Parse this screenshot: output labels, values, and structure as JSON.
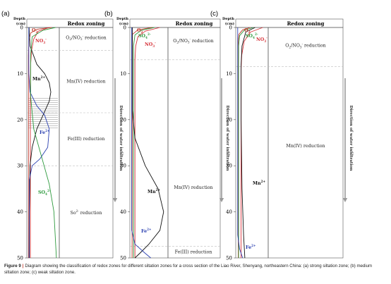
{
  "panels": [
    {
      "letter": "(a)",
      "header_title": "Redox zoning",
      "axis_label_top": "Depth",
      "axis_label_unit": "(cm)",
      "ticks": [
        "0",
        "10",
        "20",
        "30",
        "40",
        "50"
      ],
      "curve_labels": [
        {
          "base": "O",
          "sub": "2",
          "sup": ""
        },
        {
          "base": "NO",
          "sub": "3",
          "sup": "-"
        },
        {
          "base": "Mn",
          "sub": "",
          "sup": "2+"
        },
        {
          "base": "Fe",
          "sub": "",
          "sup": "2+"
        },
        {
          "base": "SO",
          "sub": "4",
          "sup": "2-"
        }
      ],
      "zones": [
        {
          "text": "O",
          "sub1": "2",
          "mid": "/NO",
          "sub2": "3",
          "sup2": "-",
          "tail": " reduction"
        },
        {
          "text": "Mn(IV) reduction"
        },
        {
          "text": "Fe(III) reduction"
        },
        {
          "text": "So",
          "sup": "2-",
          "tail": " reduction"
        }
      ],
      "arrow_text": "Direction of water infiltration"
    },
    {
      "letter": "(b)",
      "header_title": "Redox zoning",
      "axis_label_top": "Depth",
      "axis_label_unit": "(cm)",
      "ticks": [
        "0",
        "10",
        "20",
        "30",
        "40",
        "50"
      ],
      "curve_labels": [
        {
          "base": "O",
          "sub": "2",
          "sup": ""
        },
        {
          "base": "SO",
          "sub": "4",
          "sup": "2-"
        },
        {
          "base": "NO",
          "sub": "3",
          "sup": "-"
        },
        {
          "base": "Mn",
          "sub": "",
          "sup": "2+"
        },
        {
          "base": "Fe",
          "sub": "",
          "sup": "2+"
        }
      ],
      "zones": [
        {
          "text": "O",
          "sub1": "2",
          "mid": "/NO",
          "sub2": "3",
          "sup2": "-",
          "tail": " reduction"
        },
        {
          "text": "Mn(IV) reduction"
        },
        {
          "text": "Fe(III) reduction"
        }
      ],
      "arrow_text": "Direction of water infiltration"
    },
    {
      "letter": "(c)",
      "header_title": "Redox zoning",
      "axis_label_top": "Depth",
      "axis_label_unit": "(cm)",
      "ticks": [
        "0",
        "10",
        "20",
        "30",
        "40",
        "50"
      ],
      "curve_labels": [
        {
          "base": "O",
          "sub": "2",
          "sup": ""
        },
        {
          "base": "SO",
          "sub": "4",
          "sup": "2-"
        },
        {
          "base": "NO",
          "sub": "3",
          "sup": "-"
        },
        {
          "base": "Mn",
          "sub": "",
          "sup": "2+"
        },
        {
          "base": "Fe",
          "sub": "",
          "sup": "2+"
        }
      ],
      "zones": [
        {
          "text": "O",
          "sub1": "2",
          "mid": "/NO",
          "sub2": "3",
          "sup2": "-",
          "tail": " reduction"
        },
        {
          "text": "Mn(IV) reduction"
        }
      ],
      "arrow_text": "Direction of water infiltration"
    }
  ],
  "caption": {
    "label": "Figure 9",
    "separator": "|",
    "text": "Diagram showing the classification of redox zones for different siltation zones for a cross section of the Liao River, Shenyang, northeastern China: (a) strong siltation zone; (b) medium siltation zone; (c) weak siltation zone."
  },
  "colors": {
    "o2": "#c0392b",
    "no3": "#d6333a",
    "mn": "#111111",
    "fe": "#2a3fb0",
    "so4": "#2e9a3e",
    "arrow": "#9a9a9a",
    "frame": "#555555"
  },
  "chart_data": [
    {
      "type": "line",
      "title": "",
      "ylabel": "Depth (cm)",
      "xlabel": "",
      "ylim": [
        0,
        50
      ],
      "y_inverted": true,
      "zone_boundaries": [
        5,
        18.5,
        30,
        50
      ],
      "series": [
        {
          "name": "O2",
          "color": "#c0392b",
          "points": [
            [
              0.78,
              0
            ],
            [
              0.3,
              0.4
            ],
            [
              0.1,
              1.2
            ],
            [
              0.04,
              3
            ],
            [
              0.03,
              6
            ],
            [
              0.03,
              50
            ]
          ]
        },
        {
          "name": "NO3-",
          "color": "#d6333a",
          "points": [
            [
              0.7,
              0
            ],
            [
              0.35,
              0.8
            ],
            [
              0.2,
              2.5
            ],
            [
              0.13,
              5
            ],
            [
              0.1,
              8
            ],
            [
              0.09,
              12
            ],
            [
              0.09,
              50
            ]
          ]
        },
        {
          "name": "Mn2+",
          "color": "#111111",
          "points": [
            [
              0.05,
              0
            ],
            [
              0.08,
              4
            ],
            [
              0.3,
              8
            ],
            [
              0.55,
              10
            ],
            [
              0.7,
              12
            ],
            [
              0.75,
              14
            ],
            [
              0.7,
              16
            ],
            [
              0.5,
              19
            ],
            [
              0.3,
              22
            ],
            [
              0.15,
              26
            ],
            [
              0.08,
              30
            ],
            [
              0.06,
              40
            ],
            [
              0.06,
              50
            ]
          ]
        },
        {
          "name": "Fe2+",
          "color": "#2a3fb0",
          "points": [
            [
              0.04,
              0
            ],
            [
              0.04,
              10
            ],
            [
              0.08,
              14
            ],
            [
              0.3,
              17
            ],
            [
              0.55,
              19
            ],
            [
              0.7,
              22
            ],
            [
              0.65,
              26
            ],
            [
              0.4,
              28.5
            ],
            [
              0.15,
              30
            ],
            [
              0.06,
              33
            ],
            [
              0.05,
              50
            ]
          ]
        },
        {
          "name": "SO42-",
          "color": "#2e9a3e",
          "points": [
            [
              0.9,
              0
            ],
            [
              0.5,
              0.6
            ],
            [
              0.15,
              2
            ],
            [
              0.1,
              6
            ],
            [
              0.1,
              15
            ],
            [
              0.2,
              22
            ],
            [
              0.45,
              28
            ],
            [
              0.7,
              34
            ],
            [
              0.85,
              40
            ],
            [
              0.93,
              50
            ]
          ]
        }
      ]
    },
    {
      "type": "line",
      "title": "",
      "ylabel": "Depth (cm)",
      "xlabel": "",
      "ylim": [
        0,
        50
      ],
      "y_inverted": true,
      "zone_boundaries": [
        7,
        47.5,
        50
      ],
      "series": [
        {
          "name": "O2",
          "color": "#c0392b",
          "points": [
            [
              0.6,
              0
            ],
            [
              0.2,
              0.5
            ],
            [
              0.05,
              1.5
            ],
            [
              0.04,
              50
            ]
          ]
        },
        {
          "name": "NO3-",
          "color": "#d6333a",
          "points": [
            [
              0.8,
              0
            ],
            [
              0.4,
              0.8
            ],
            [
              0.2,
              2
            ],
            [
              0.14,
              4
            ],
            [
              0.12,
              7
            ],
            [
              0.12,
              50
            ]
          ]
        },
        {
          "name": "SO42-",
          "color": "#2e9a3e",
          "points": [
            [
              0.65,
              0
            ],
            [
              0.3,
              0.6
            ],
            [
              0.12,
              1.6
            ],
            [
              0.08,
              4
            ],
            [
              0.08,
              50
            ]
          ]
        },
        {
          "name": "Mn2+",
          "color": "#111111",
          "points": [
            [
              0.05,
              0
            ],
            [
              0.05,
              18
            ],
            [
              0.12,
              24
            ],
            [
              0.4,
              30
            ],
            [
              0.75,
              35
            ],
            [
              0.9,
              40
            ],
            [
              0.8,
              44
            ],
            [
              0.5,
              47
            ],
            [
              0.25,
              49
            ],
            [
              0.12,
              50
            ]
          ]
        },
        {
          "name": "Fe2+",
          "color": "#2a3fb0",
          "points": [
            [
              0.03,
              0
            ],
            [
              0.03,
              44
            ],
            [
              0.12,
              47
            ],
            [
              0.4,
              49
            ],
            [
              0.55,
              50
            ]
          ]
        }
      ]
    },
    {
      "type": "line",
      "title": "",
      "ylabel": "Depth (cm)",
      "xlabel": "",
      "ylim": [
        0,
        50
      ],
      "y_inverted": true,
      "zone_boundaries": [
        8.5,
        50
      ],
      "series": [
        {
          "name": "O2",
          "color": "#c0392b",
          "points": [
            [
              0.45,
              0
            ],
            [
              0.2,
              0.5
            ],
            [
              0.08,
              1.5
            ],
            [
              0.06,
              3
            ],
            [
              0.06,
              50
            ]
          ]
        },
        {
          "name": "SO42-",
          "color": "#2e9a3e",
          "points": [
            [
              0.55,
              0
            ],
            [
              0.25,
              0.6
            ],
            [
              0.1,
              1.8
            ],
            [
              0.07,
              4
            ],
            [
              0.07,
              50
            ]
          ]
        },
        {
          "name": "NO3-",
          "color": "#d6333a",
          "points": [
            [
              0.85,
              0
            ],
            [
              0.45,
              1
            ],
            [
              0.25,
              3
            ],
            [
              0.17,
              6
            ],
            [
              0.15,
              9
            ],
            [
              0.15,
              50
            ]
          ]
        },
        {
          "name": "Mn2+",
          "color": "#111111",
          "points": [
            [
              0.6,
              0
            ],
            [
              0.3,
              1
            ],
            [
              0.18,
              4
            ],
            [
              0.15,
              8
            ],
            [
              0.15,
              20
            ],
            [
              0.18,
              35
            ],
            [
              0.23,
              45
            ],
            [
              0.27,
              50
            ]
          ]
        },
        {
          "name": "Fe2+",
          "color": "#2a3fb0",
          "points": [
            [
              0.04,
              0
            ],
            [
              0.04,
              45
            ],
            [
              0.1,
              48
            ],
            [
              0.2,
              50
            ]
          ]
        }
      ]
    }
  ]
}
